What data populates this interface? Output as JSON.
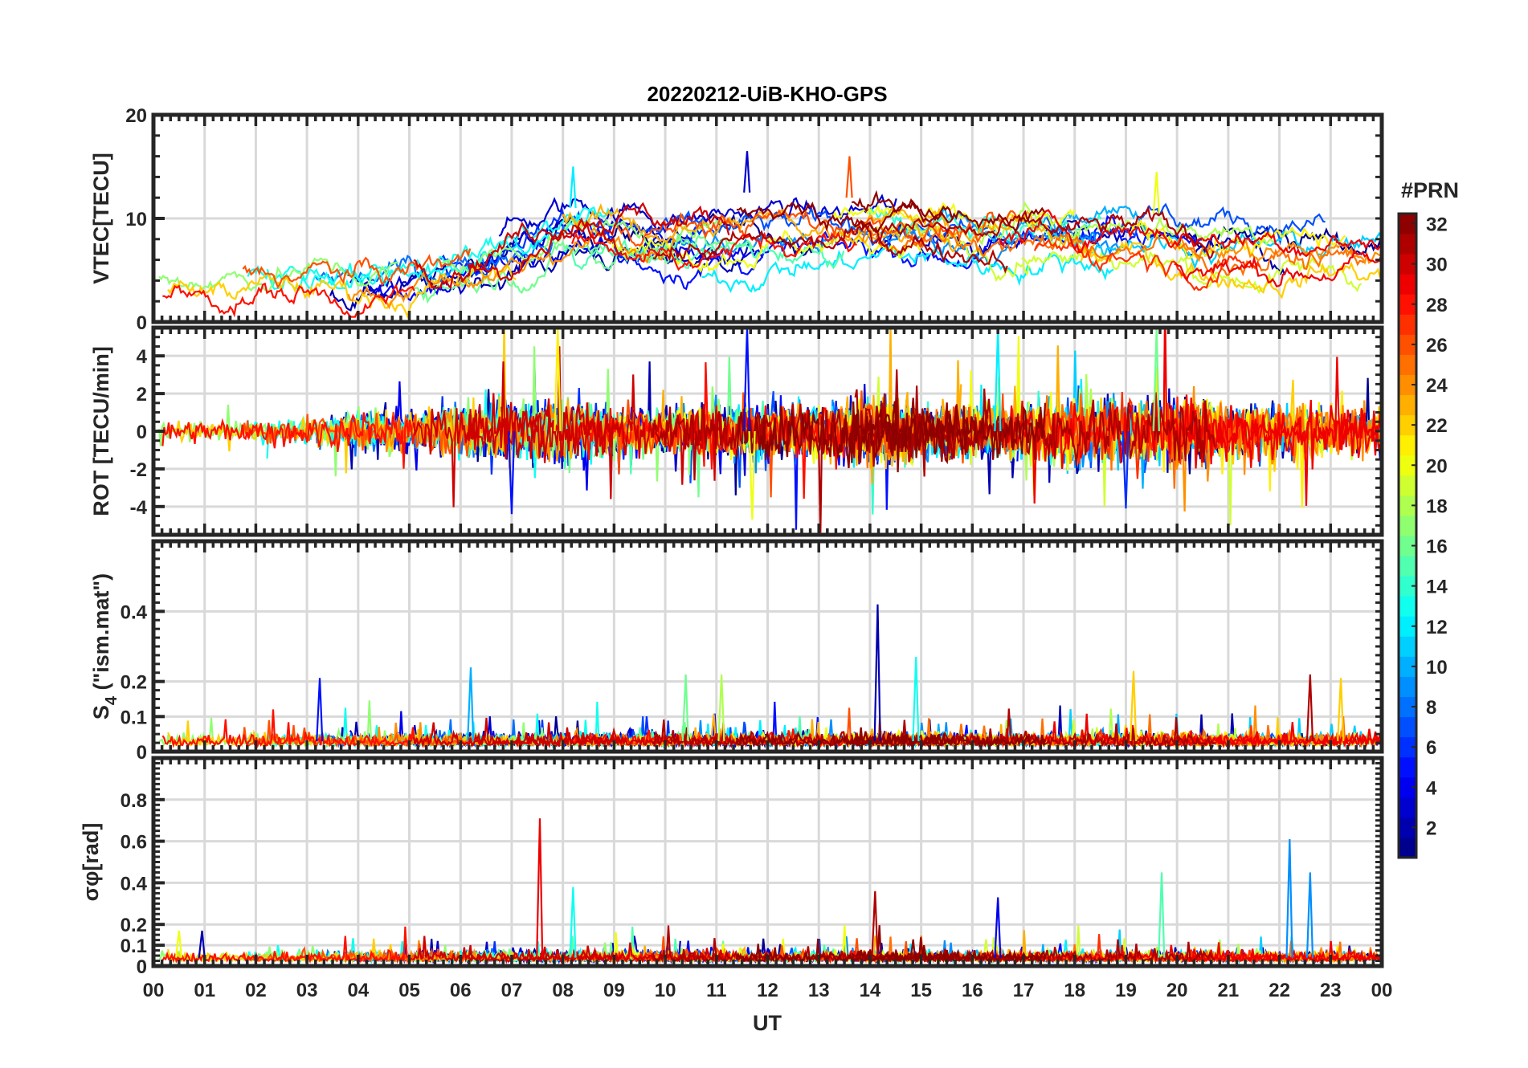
{
  "chart_data": {
    "type": "line",
    "title": "20220212-UiB-KHO-GPS",
    "xlabel": "UT",
    "xlim": [
      0,
      24
    ],
    "x_tick_labels": [
      "00",
      "01",
      "02",
      "03",
      "04",
      "05",
      "06",
      "07",
      "08",
      "09",
      "10",
      "11",
      "12",
      "13",
      "14",
      "15",
      "16",
      "17",
      "18",
      "19",
      "20",
      "21",
      "22",
      "23",
      "00"
    ],
    "grid": true,
    "colorbar": {
      "label": "#PRN",
      "range": [
        1,
        32
      ],
      "colormap": "jet",
      "tick_labels": [
        "2",
        "4",
        "6",
        "8",
        "10",
        "12",
        "14",
        "16",
        "18",
        "20",
        "22",
        "24",
        "26",
        "28",
        "30",
        "32"
      ],
      "placement": "right"
    },
    "panels": [
      {
        "name": "vtec",
        "ylabel": "VTEC[TECU]",
        "ylim": [
          0,
          20
        ],
        "y_tick_labels": [
          "0",
          "10",
          "20"
        ],
        "y_ticks": [
          0,
          10,
          20
        ],
        "hourly_mean": [
          3.5,
          3.8,
          4.2,
          4.2,
          3.5,
          4.5,
          5.5,
          7,
          9,
          8,
          7.5,
          8,
          8.5,
          8,
          9,
          8,
          7.5,
          8,
          8,
          8.5,
          7,
          7,
          7,
          7,
          6
        ],
        "hourly_spread": [
          1.2,
          1.2,
          1.2,
          1.5,
          1.5,
          2,
          2,
          3,
          3.5,
          3.5,
          3,
          3,
          3,
          2.5,
          2.5,
          2,
          2,
          2,
          2,
          2.5,
          2.5,
          3,
          3,
          2,
          2
        ],
        "peaks": [
          {
            "x": 8.2,
            "y": 15
          },
          {
            "x": 11.6,
            "y": 16.5
          },
          {
            "x": 13.6,
            "y": 16
          },
          {
            "x": 19.6,
            "y": 14.5
          }
        ]
      },
      {
        "name": "rot",
        "ylabel": "ROT [TECU/min]",
        "ylim": [
          -5.5,
          5.5
        ],
        "y_tick_labels": [
          "-4",
          "-2",
          "0",
          "2",
          "4"
        ],
        "y_ticks": [
          -4,
          -2,
          0,
          2,
          4
        ],
        "hourly_amplitude": [
          0.6,
          0.6,
          0.5,
          0.7,
          0.9,
          1.0,
          1.2,
          1.5,
          1.5,
          1.2,
          1.0,
          1.3,
          1.3,
          1.5,
          1.8,
          1.4,
          1.3,
          1.5,
          1.8,
          1.8,
          1.8,
          1.4,
          1.4,
          1.3,
          1.3
        ],
        "peaks": [
          {
            "x": 7.9,
            "y": 5.5
          },
          {
            "x": 11.6,
            "y": 5.5
          },
          {
            "x": 16.5,
            "y": 5.5
          },
          {
            "x": 19.6,
            "y": 5.5
          },
          {
            "x": 11.7,
            "y": -4.7
          },
          {
            "x": 19.0,
            "y": -4.1
          },
          {
            "x": 7.0,
            "y": -4.4
          }
        ]
      },
      {
        "name": "s4",
        "ylabel": "S4 (\"ism.mat\")",
        "ylabel_main": "S",
        "ylabel_sub": "4",
        "ylabel_rest": " (\"ism.mat\")",
        "ylim": [
          0,
          0.6
        ],
        "y_tick_labels": [
          "0",
          "0.1",
          "0.2",
          "0.4"
        ],
        "y_ticks": [
          0,
          0.1,
          0.2,
          0.4
        ],
        "baseline": 0.03,
        "peaks": [
          {
            "x": 3.25,
            "y": 0.21,
            "prn": 5
          },
          {
            "x": 6.2,
            "y": 0.24,
            "prn": 10
          },
          {
            "x": 14.15,
            "y": 0.42,
            "prn": 2
          },
          {
            "x": 14.9,
            "y": 0.27,
            "prn": 13
          },
          {
            "x": 19.15,
            "y": 0.23,
            "prn": 22
          },
          {
            "x": 22.6,
            "y": 0.22,
            "prn": 31
          },
          {
            "x": 23.2,
            "y": 0.21,
            "prn": 22
          },
          {
            "x": 11.1,
            "y": 0.22,
            "prn": 18
          },
          {
            "x": 10.4,
            "y": 0.22,
            "prn": 16
          }
        ]
      },
      {
        "name": "sigma_phi",
        "ylabel": "σφ[rad]",
        "ylabel_main": "σ",
        "ylabel_sub": "φ",
        "ylabel_rest": "[rad]",
        "ylim": [
          0,
          1
        ],
        "y_tick_labels": [
          "0",
          "0.1",
          "0.2",
          "0.4",
          "0.6",
          "0.8"
        ],
        "y_ticks": [
          0,
          0.1,
          0.2,
          0.4,
          0.6,
          0.8
        ],
        "baseline": 0.04,
        "peaks": [
          {
            "x": 7.55,
            "y": 0.71,
            "prn": 29
          },
          {
            "x": 8.2,
            "y": 0.38,
            "prn": 13
          },
          {
            "x": 14.1,
            "y": 0.36,
            "prn": 31
          },
          {
            "x": 16.5,
            "y": 0.33,
            "prn": 4
          },
          {
            "x": 19.7,
            "y": 0.45,
            "prn": 15
          },
          {
            "x": 22.2,
            "y": 0.61,
            "prn": 9
          },
          {
            "x": 22.6,
            "y": 0.45,
            "prn": 9
          },
          {
            "x": 0.5,
            "y": 0.17,
            "prn": 20
          },
          {
            "x": 0.95,
            "y": 0.17,
            "prn": 2
          }
        ]
      }
    ]
  }
}
